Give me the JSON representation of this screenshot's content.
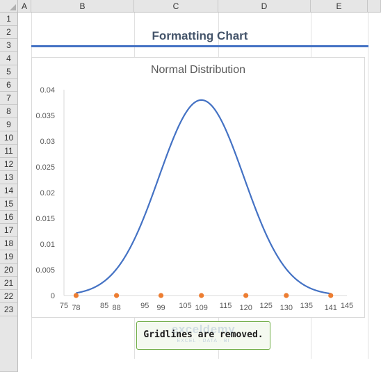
{
  "sheet": {
    "columns": [
      "A",
      "B",
      "C",
      "D",
      "E"
    ],
    "rows": [
      "1",
      "2",
      "3",
      "4",
      "5",
      "6",
      "7",
      "8",
      "9",
      "10",
      "11",
      "12",
      "13",
      "14",
      "15",
      "16",
      "17",
      "18",
      "19",
      "20",
      "21",
      "22",
      "23"
    ]
  },
  "heading": "Formatting Chart",
  "note": {
    "text": "Gridlines are removed.",
    "watermark": "exceldemy",
    "watermark_sub": "EXCEL · DATA · BI"
  },
  "colors": {
    "line": "#4472c4",
    "marker": "#ed7d31",
    "heading_rule": "#4472c4",
    "note_border": "#70ad47"
  },
  "chart_data": {
    "type": "line",
    "title": "Normal Distribution",
    "mean": 109,
    "std_dev": 10.5,
    "xlim": [
      75,
      145
    ],
    "ylim": [
      0,
      0.04
    ],
    "x_ticks": [
      75,
      85,
      95,
      105,
      115,
      125,
      135,
      145
    ],
    "x_point_labels": [
      78,
      88,
      99,
      109,
      120,
      130,
      141
    ],
    "y_ticks": [
      "0",
      "0.005",
      "0.01",
      "0.015",
      "0.02",
      "0.025",
      "0.03",
      "0.035",
      "0.04"
    ],
    "y_tick_values": [
      0,
      0.005,
      0.01,
      0.015,
      0.02,
      0.025,
      0.03,
      0.035,
      0.04
    ],
    "series": [
      {
        "values_x": [
          78,
          88,
          99,
          109,
          120,
          130,
          141
        ],
        "values_y": [
          0,
          0,
          0,
          0,
          0,
          0,
          0
        ]
      }
    ],
    "gridlines": false,
    "legend": "none"
  }
}
